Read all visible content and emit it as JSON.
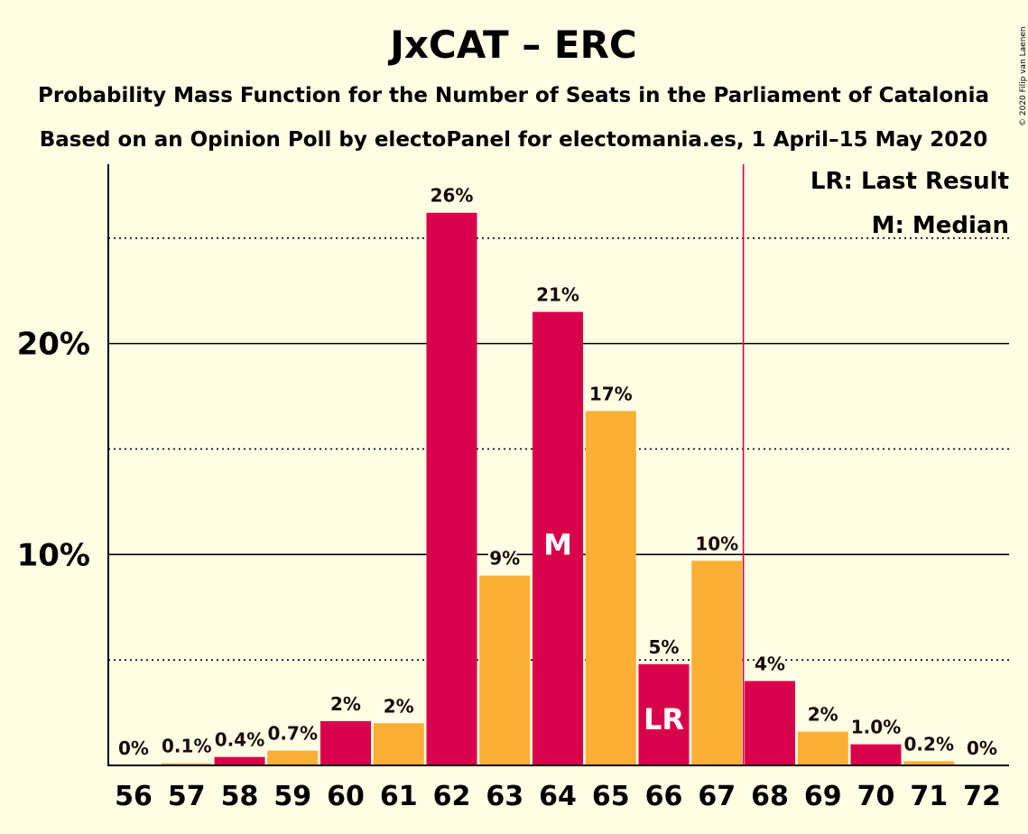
{
  "copyright": "© 2020 Filip van Laenen",
  "chart_data": {
    "type": "bar",
    "title": "JxCAT – ERC",
    "subtitle": "Probability Mass Function for the Number of Seats in the Parliament of Catalonia",
    "subtitle2": "Based on an Opinion Poll by electoPanel for electomania.es, 1 April–15 May 2020",
    "categories": [
      "56",
      "57",
      "58",
      "59",
      "60",
      "61",
      "62",
      "63",
      "64",
      "65",
      "66",
      "67",
      "68",
      "69",
      "70",
      "71",
      "72"
    ],
    "values": [
      0,
      0.1,
      0.4,
      0.7,
      2.1,
      2.0,
      26.2,
      9.0,
      21.5,
      16.8,
      4.8,
      9.7,
      4.0,
      1.6,
      1.0,
      0.2,
      0
    ],
    "value_labels": [
      "0%",
      "0.1%",
      "0.4%",
      "0.7%",
      "2%",
      "2%",
      "26%",
      "9%",
      "21%",
      "17%",
      "5%",
      "10%",
      "4%",
      "2%",
      "1.0%",
      "0.2%",
      "0%"
    ],
    "bar_colors": [
      "#D9004C",
      "#FBAF36",
      "#D9004C",
      "#FBAF36",
      "#D9004C",
      "#FBAF36",
      "#D9004C",
      "#FBAF36",
      "#D9004C",
      "#FBAF36",
      "#D9004C",
      "#FBAF36",
      "#D9004C",
      "#FBAF36",
      "#D9004C",
      "#FBAF36",
      "#D9004C"
    ],
    "y_ticks": [
      {
        "value": 10,
        "label": "10%"
      },
      {
        "value": 20,
        "label": "20%"
      }
    ],
    "y_minor_gridlines": [
      5,
      15,
      25
    ],
    "ylim": [
      0,
      28.5
    ],
    "median_seat": "64",
    "median_marker": "M",
    "last_result_seat": "66",
    "last_result_marker": "LR",
    "majority_line_after": "67",
    "majority_line_color": "#D9004C",
    "legend": [
      "LR: Last Result",
      "M: Median"
    ],
    "legend_position": "top-right",
    "grid": true
  }
}
